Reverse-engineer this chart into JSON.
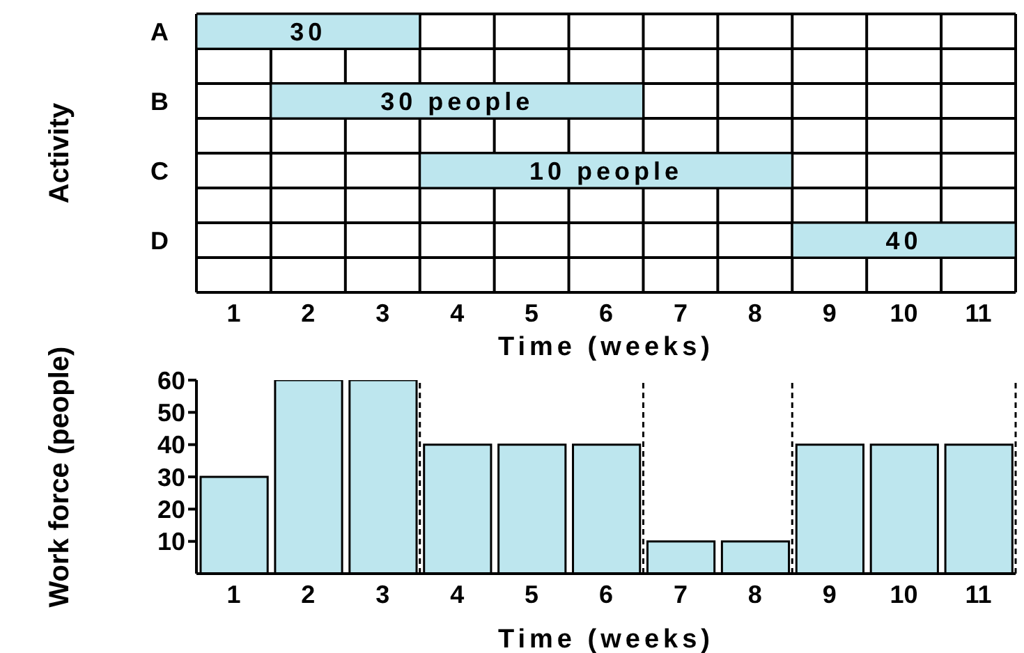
{
  "chart_data": [
    {
      "type": "bar",
      "orientation": "horizontal",
      "ylabel": "Activity",
      "xlabel": "Time (weeks)",
      "categories": [
        "A",
        null,
        "B",
        null,
        "C",
        null,
        "D",
        null
      ],
      "base": [
        0,
        null,
        1,
        null,
        3,
        null,
        8,
        null
      ],
      "values": [
        3,
        null,
        5,
        null,
        5,
        null,
        3,
        null
      ],
      "annotations": [
        {
          "text": "30",
          "x": 1.5,
          "y": "A"
        },
        {
          "text": "30 people",
          "x": 3.5,
          "y": "B"
        },
        {
          "text": "10 people",
          "x": 5.5,
          "y": "C"
        },
        {
          "text": "40",
          "x": 9.5,
          "y": "D"
        }
      ],
      "color": "#bde6ee",
      "xlim": [
        0,
        11
      ],
      "xticks": [
        {
          "value": 0,
          "label": null
        },
        {
          "value": 0.5,
          "label": "1"
        },
        {
          "value": 1,
          "label": null
        },
        {
          "value": 1.5,
          "label": "2"
        },
        {
          "value": 2,
          "label": null
        },
        {
          "value": 2.5,
          "label": "3"
        },
        {
          "value": 3,
          "label": null
        },
        {
          "value": 3.5,
          "label": "4"
        },
        {
          "value": 4,
          "label": null
        },
        {
          "value": 4.5,
          "label": "5"
        },
        {
          "value": 5,
          "label": null
        },
        {
          "value": 5.5,
          "label": "6"
        },
        {
          "value": 6,
          "label": null
        },
        {
          "value": 6.5,
          "label": "7"
        },
        {
          "value": 7,
          "label": null
        },
        {
          "value": 7.5,
          "label": "8"
        },
        {
          "value": 8,
          "label": null
        },
        {
          "value": 8.5,
          "label": "9"
        },
        {
          "value": 9,
          "label": null
        },
        {
          "value": 9.5,
          "label": "10"
        },
        {
          "value": 10,
          "label": null
        },
        {
          "value": 10.5,
          "label": "11"
        },
        {
          "value": 11,
          "label": null
        }
      ],
      "grid": true
    },
    {
      "type": "bar",
      "xlabel": "Time (weeks)",
      "ylabel": "Work force (people)",
      "x": [
        0.5,
        1.5,
        2.5,
        3.5,
        4.5,
        5.5,
        6.5,
        7.5,
        8.5,
        9.5,
        10.5
      ],
      "values": [
        30,
        60,
        60,
        40,
        40,
        40,
        10,
        10,
        40,
        40,
        40
      ],
      "color": "#bde6ee",
      "xlim": [
        0,
        11
      ],
      "xticks": [
        {
          "value": 0.5,
          "label": "1"
        },
        {
          "value": 1.5,
          "label": "2"
        },
        {
          "value": 2.5,
          "label": "3"
        },
        {
          "value": 3.5,
          "label": "4"
        },
        {
          "value": 4.5,
          "label": "5"
        },
        {
          "value": 5.5,
          "label": "6"
        },
        {
          "value": 6.5,
          "label": "7"
        },
        {
          "value": 7.5,
          "label": "8"
        },
        {
          "value": 8.5,
          "label": "9"
        },
        {
          "value": 9.5,
          "label": "10"
        },
        {
          "value": 10.5,
          "label": "11"
        }
      ],
      "ylim": [
        0,
        60
      ],
      "yticks": [
        10,
        20,
        30,
        40,
        50,
        60
      ],
      "ref_lines": [
        {
          "axis": "x",
          "value": 3,
          "line_style": "dashed"
        },
        {
          "axis": "x",
          "value": 6,
          "line_style": "dashed"
        },
        {
          "axis": "x",
          "value": 8,
          "line_style": "dashed"
        },
        {
          "axis": "x",
          "value": 11,
          "line_style": "dashed"
        }
      ]
    }
  ]
}
